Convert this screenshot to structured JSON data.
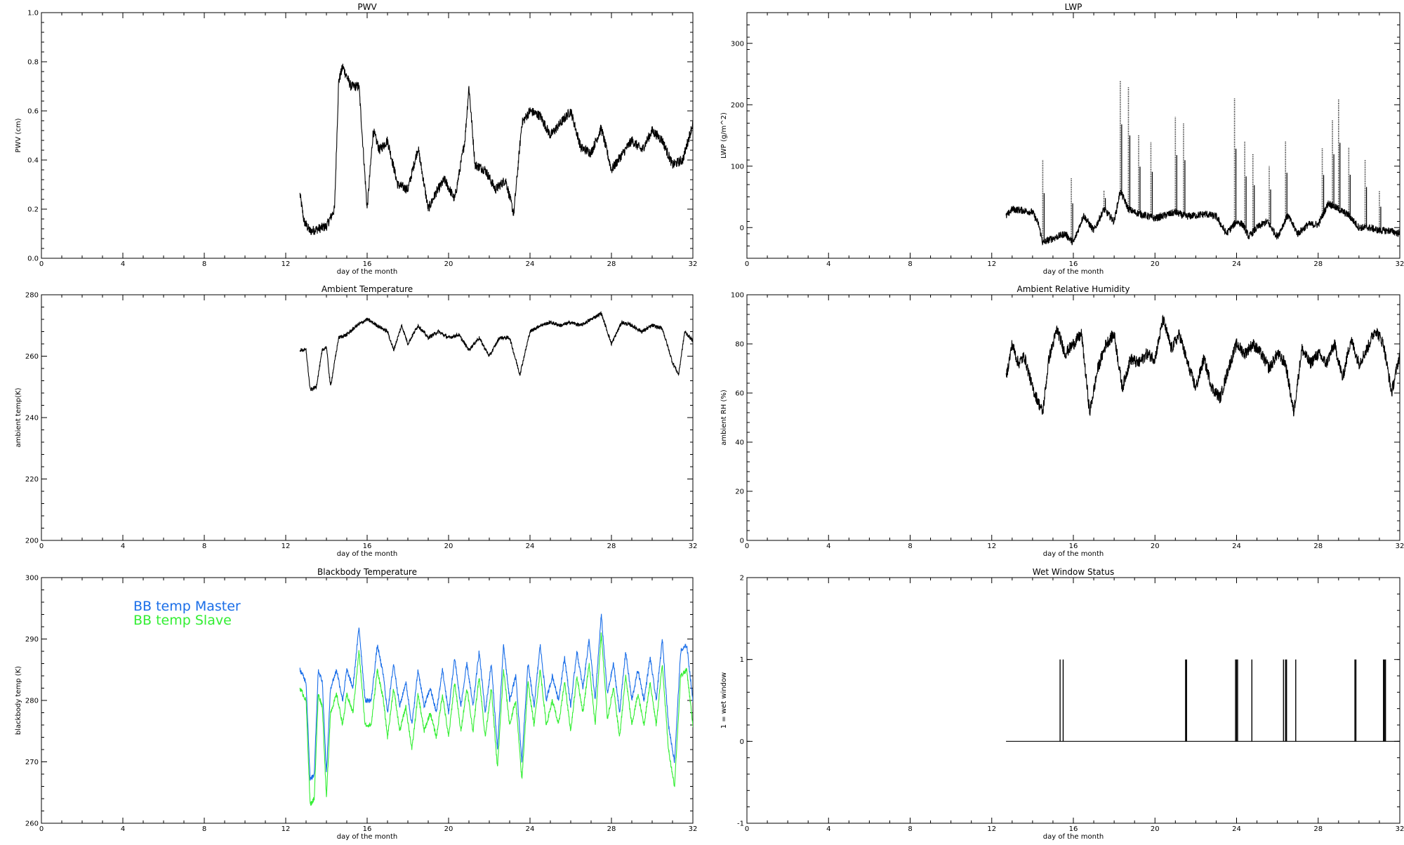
{
  "chart_data": [
    {
      "id": "pwv",
      "type": "line",
      "title": "PWV",
      "xlabel": "day of the month",
      "ylabel": "PWV (cm)",
      "xlim": [
        0,
        32
      ],
      "ylim": [
        0,
        1
      ],
      "xticks": [
        0,
        4,
        8,
        12,
        16,
        20,
        24,
        28,
        32
      ],
      "yticks": [
        0.0,
        0.2,
        0.4,
        0.6,
        0.8,
        1.0
      ],
      "ytick_labels": [
        "0.0",
        "0.2",
        "0.4",
        "0.6",
        "0.8",
        "1.0"
      ],
      "grid": false,
      "series": [
        {
          "color": "#000000",
          "noise": 0.02,
          "x": [
            12.7,
            12.9,
            13.2,
            13.6,
            14.0,
            14.4,
            14.6,
            14.8,
            15.2,
            15.6,
            16.0,
            16.3,
            16.6,
            17.0,
            17.5,
            18.0,
            18.5,
            19.0,
            19.4,
            19.8,
            20.3,
            20.8,
            21.0,
            21.3,
            21.8,
            22.3,
            22.8,
            23.2,
            23.6,
            24.0,
            24.5,
            25.0,
            25.5,
            26.0,
            26.5,
            27.0,
            27.5,
            28.0,
            28.5,
            29.0,
            29.5,
            30.0,
            30.5,
            31.0,
            31.5,
            32.0
          ],
          "y": [
            0.26,
            0.15,
            0.11,
            0.12,
            0.13,
            0.2,
            0.72,
            0.78,
            0.7,
            0.7,
            0.2,
            0.52,
            0.44,
            0.48,
            0.3,
            0.28,
            0.45,
            0.2,
            0.27,
            0.32,
            0.24,
            0.48,
            0.7,
            0.38,
            0.36,
            0.28,
            0.32,
            0.18,
            0.55,
            0.6,
            0.58,
            0.5,
            0.55,
            0.6,
            0.45,
            0.43,
            0.53,
            0.36,
            0.42,
            0.48,
            0.44,
            0.52,
            0.48,
            0.38,
            0.4,
            0.55
          ]
        }
      ]
    },
    {
      "id": "lwp",
      "type": "line",
      "title": "LWP",
      "xlabel": "day of the month",
      "ylabel": "LWP (g/m^2)",
      "xlim": [
        0,
        32
      ],
      "ylim": [
        -50,
        350
      ],
      "xticks": [
        0,
        4,
        8,
        12,
        16,
        20,
        24,
        28,
        32
      ],
      "yticks": [
        0,
        100,
        200,
        300
      ],
      "ytick_labels": [
        "0",
        "100",
        "200",
        "300"
      ],
      "grid": false,
      "series": [
        {
          "color": "#000000",
          "noise": 6,
          "x": [
            12.7,
            13.0,
            13.5,
            14.0,
            14.3,
            14.5,
            14.8,
            15.2,
            15.6,
            16.0,
            16.5,
            17.0,
            17.5,
            18.0,
            18.3,
            18.5,
            18.7,
            19.0,
            19.5,
            20.0,
            20.5,
            21.0,
            21.5,
            22.0,
            22.5,
            23.0,
            23.5,
            24.0,
            24.3,
            24.6,
            25.0,
            25.5,
            26.0,
            26.5,
            27.0,
            27.5,
            28.0,
            28.5,
            29.0,
            29.5,
            30.0,
            30.5,
            31.0,
            31.5,
            32.0
          ],
          "y": [
            18,
            30,
            28,
            25,
            5,
            -25,
            -20,
            -15,
            -10,
            -25,
            20,
            -5,
            30,
            10,
            60,
            45,
            30,
            25,
            20,
            15,
            20,
            25,
            18,
            20,
            22,
            18,
            -10,
            10,
            5,
            -15,
            0,
            10,
            -15,
            20,
            -10,
            5,
            5,
            40,
            30,
            20,
            0,
            0,
            -5,
            -5,
            -10
          ]
        }
      ],
      "spikes": [
        {
          "x": 14.5,
          "y": 110
        },
        {
          "x": 15.9,
          "y": 80
        },
        {
          "x": 17.5,
          "y": 60
        },
        {
          "x": 18.3,
          "y": 240
        },
        {
          "x": 18.7,
          "y": 230
        },
        {
          "x": 19.2,
          "y": 150
        },
        {
          "x": 19.8,
          "y": 140
        },
        {
          "x": 21.0,
          "y": 180
        },
        {
          "x": 21.4,
          "y": 170
        },
        {
          "x": 23.9,
          "y": 210
        },
        {
          "x": 24.4,
          "y": 140
        },
        {
          "x": 24.8,
          "y": 120
        },
        {
          "x": 25.6,
          "y": 100
        },
        {
          "x": 26.4,
          "y": 140
        },
        {
          "x": 28.2,
          "y": 130
        },
        {
          "x": 28.7,
          "y": 175
        },
        {
          "x": 29.0,
          "y": 210
        },
        {
          "x": 29.5,
          "y": 130
        },
        {
          "x": 30.3,
          "y": 110
        },
        {
          "x": 31.0,
          "y": 60
        }
      ]
    },
    {
      "id": "temp",
      "type": "line",
      "title": "Ambient Temperature",
      "xlabel": "day of the month",
      "ylabel": "ambient temp(K)",
      "xlim": [
        0,
        32
      ],
      "ylim": [
        200,
        280
      ],
      "xticks": [
        0,
        4,
        8,
        12,
        16,
        20,
        24,
        28,
        32
      ],
      "yticks": [
        200,
        220,
        240,
        260,
        280
      ],
      "ytick_labels": [
        "200",
        "220",
        "240",
        "260",
        "280"
      ],
      "grid": false,
      "series": [
        {
          "color": "#000000",
          "noise": 0.6,
          "x": [
            12.7,
            13.0,
            13.2,
            13.5,
            13.8,
            14.0,
            14.2,
            14.6,
            15.0,
            15.5,
            16.0,
            16.5,
            17.0,
            17.3,
            17.7,
            18.0,
            18.5,
            19.0,
            19.5,
            20.0,
            20.5,
            21.0,
            21.5,
            22.0,
            22.5,
            23.0,
            23.5,
            24.0,
            24.5,
            25.0,
            25.5,
            26.0,
            26.5,
            27.0,
            27.5,
            28.0,
            28.5,
            29.0,
            29.5,
            30.0,
            30.5,
            31.0,
            31.3,
            31.6,
            32.0
          ],
          "y": [
            262,
            262,
            249,
            250,
            262,
            263,
            250,
            266,
            267,
            270,
            272,
            270,
            268,
            262,
            270,
            264,
            270,
            266,
            268,
            266,
            267,
            262,
            266,
            260,
            266,
            266,
            254,
            268,
            270,
            271,
            270,
            271,
            270,
            272,
            274,
            264,
            271,
            270,
            268,
            270,
            269,
            258,
            254,
            268,
            265
          ]
        }
      ]
    },
    {
      "id": "rh",
      "type": "line",
      "title": "Ambient Relative Humidity",
      "xlabel": "day of the month",
      "ylabel": "ambient RH (%)",
      "xlim": [
        0,
        32
      ],
      "ylim": [
        0,
        100
      ],
      "xticks": [
        0,
        4,
        8,
        12,
        16,
        20,
        24,
        28,
        32
      ],
      "yticks": [
        0,
        20,
        40,
        60,
        80,
        100
      ],
      "ytick_labels": [
        "0",
        "20",
        "40",
        "60",
        "80",
        "100"
      ],
      "grid": false,
      "series": [
        {
          "color": "#000000",
          "noise": 2.5,
          "x": [
            12.7,
            13.0,
            13.3,
            13.6,
            14.0,
            14.5,
            14.8,
            15.2,
            15.6,
            16.0,
            16.4,
            16.8,
            17.2,
            17.6,
            18.0,
            18.4,
            18.8,
            19.2,
            19.6,
            20.0,
            20.4,
            20.8,
            21.2,
            21.6,
            22.0,
            22.4,
            22.8,
            23.2,
            23.6,
            24.0,
            24.4,
            24.8,
            25.2,
            25.6,
            26.0,
            26.4,
            26.8,
            27.2,
            27.6,
            28.0,
            28.4,
            28.8,
            29.2,
            29.6,
            30.0,
            30.4,
            30.8,
            31.2,
            31.6,
            32.0
          ],
          "y": [
            66,
            80,
            72,
            75,
            62,
            52,
            74,
            86,
            76,
            80,
            84,
            52,
            70,
            80,
            84,
            62,
            74,
            72,
            76,
            74,
            90,
            78,
            84,
            72,
            62,
            74,
            62,
            58,
            70,
            80,
            76,
            80,
            76,
            70,
            76,
            72,
            52,
            78,
            72,
            76,
            72,
            80,
            66,
            82,
            72,
            78,
            86,
            80,
            60,
            76
          ]
        }
      ]
    },
    {
      "id": "bb",
      "type": "line",
      "title": "Blackbody Temperature",
      "xlabel": "day of the month",
      "ylabel": "blackbody temp (K)",
      "xlim": [
        0,
        32
      ],
      "ylim": [
        260,
        300
      ],
      "xticks": [
        0,
        4,
        8,
        12,
        16,
        20,
        24,
        28,
        32
      ],
      "yticks": [
        260,
        270,
        280,
        290,
        300
      ],
      "ytick_labels": [
        "260",
        "270",
        "280",
        "290",
        "300"
      ],
      "grid": false,
      "legend": "top-left",
      "series": [
        {
          "name": "BB temp Master",
          "color": "#1a6ee8",
          "noise": 0.4,
          "x": [
            12.7,
            13.0,
            13.2,
            13.4,
            13.6,
            13.8,
            14.0,
            14.2,
            14.5,
            14.8,
            15.0,
            15.3,
            15.6,
            15.9,
            16.2,
            16.5,
            16.8,
            17.0,
            17.3,
            17.6,
            17.9,
            18.2,
            18.5,
            18.8,
            19.1,
            19.4,
            19.7,
            20.0,
            20.3,
            20.6,
            20.9,
            21.2,
            21.5,
            21.8,
            22.1,
            22.4,
            22.7,
            23.0,
            23.3,
            23.6,
            23.9,
            24.2,
            24.5,
            24.8,
            25.1,
            25.4,
            25.7,
            26.0,
            26.3,
            26.6,
            26.9,
            27.2,
            27.5,
            27.8,
            28.1,
            28.4,
            28.7,
            29.0,
            29.3,
            29.6,
            29.9,
            30.2,
            30.5,
            30.8,
            31.1,
            31.4,
            31.7,
            32.0
          ],
          "y": [
            285,
            283,
            267,
            268,
            285,
            283,
            268,
            282,
            285,
            280,
            285,
            282,
            292,
            280,
            280,
            289,
            284,
            278,
            286,
            279,
            283,
            276,
            285,
            279,
            282,
            278,
            285,
            278,
            287,
            279,
            286,
            279,
            288,
            278,
            286,
            272,
            289,
            280,
            284,
            270,
            286,
            279,
            289,
            280,
            284,
            280,
            287,
            279,
            288,
            282,
            290,
            280,
            294,
            281,
            286,
            278,
            288,
            280,
            285,
            280,
            287,
            280,
            290,
            276,
            270,
            288,
            289,
            280
          ]
        },
        {
          "name": "BB temp Slave",
          "color": "#33ee33",
          "noise": 0.4,
          "x": [
            12.7,
            13.0,
            13.2,
            13.4,
            13.6,
            13.8,
            14.0,
            14.2,
            14.5,
            14.8,
            15.0,
            15.3,
            15.6,
            15.9,
            16.2,
            16.5,
            16.8,
            17.0,
            17.3,
            17.6,
            17.9,
            18.2,
            18.5,
            18.8,
            19.1,
            19.4,
            19.7,
            20.0,
            20.3,
            20.6,
            20.9,
            21.2,
            21.5,
            21.8,
            22.1,
            22.4,
            22.7,
            23.0,
            23.3,
            23.6,
            23.9,
            24.2,
            24.5,
            24.8,
            25.1,
            25.4,
            25.7,
            26.0,
            26.3,
            26.6,
            26.9,
            27.2,
            27.5,
            27.8,
            28.1,
            28.4,
            28.7,
            29.0,
            29.3,
            29.6,
            29.9,
            30.2,
            30.5,
            30.8,
            31.1,
            31.4,
            31.7,
            32.0
          ],
          "y": [
            282,
            280,
            263,
            264,
            281,
            279,
            264,
            278,
            281,
            276,
            281,
            278,
            288,
            276,
            276,
            285,
            280,
            274,
            282,
            275,
            279,
            272,
            281,
            275,
            278,
            274,
            281,
            274,
            283,
            275,
            282,
            275,
            284,
            274,
            282,
            269,
            285,
            276,
            280,
            267,
            283,
            276,
            285,
            276,
            280,
            276,
            283,
            275,
            284,
            278,
            286,
            276,
            291,
            277,
            282,
            274,
            284,
            276,
            281,
            276,
            283,
            276,
            286,
            272,
            266,
            284,
            285,
            276
          ]
        }
      ]
    },
    {
      "id": "wet",
      "type": "line",
      "title": "Wet Window Status",
      "xlabel": "day of the month",
      "ylabel": "1 = wet window",
      "xlim": [
        0,
        32
      ],
      "ylim": [
        -1,
        2
      ],
      "xticks": [
        0,
        4,
        8,
        12,
        16,
        20,
        24,
        28,
        32
      ],
      "yticks": [
        -1,
        0,
        1,
        2
      ],
      "ytick_labels": [
        "-1",
        "0",
        "1",
        "2"
      ],
      "grid": false,
      "baseline": {
        "x": [
          12.7,
          32.0
        ],
        "y": 0
      },
      "pulses": [
        15.35,
        15.5,
        21.5,
        21.55,
        23.95,
        24.0,
        24.05,
        24.75,
        26.3,
        26.4,
        26.45,
        26.9,
        29.8,
        29.85,
        31.2,
        31.25,
        31.3
      ]
    }
  ]
}
